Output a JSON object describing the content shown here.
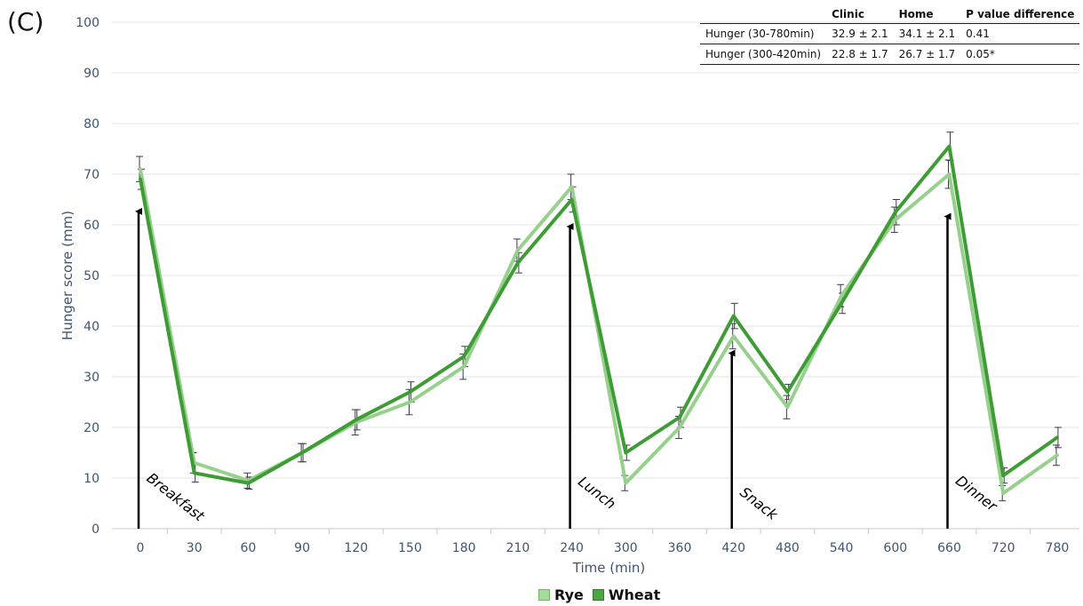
{
  "panel_label": "(C)",
  "table": {
    "headers": [
      "",
      "Clinic",
      "Home",
      "P value difference"
    ],
    "rows": [
      [
        "Hunger (30-780min)",
        "32.9 ± 2.1",
        "34.1 ± 2.1",
        "0.41"
      ],
      [
        "Hunger (300-420min)",
        "22.8 ± 1.7",
        "26.7 ± 1.7",
        "0.05*"
      ]
    ]
  },
  "chart_data": {
    "type": "line",
    "xlabel": "Time (min)",
    "ylabel": "Hunger score (mm)",
    "ylim": [
      0,
      100
    ],
    "yticks": [
      0,
      10,
      20,
      30,
      40,
      50,
      60,
      70,
      80,
      90,
      100
    ],
    "categories": [
      "0",
      "30",
      "60",
      "90",
      "120",
      "150",
      "180",
      "210",
      "240",
      "300",
      "360",
      "420",
      "480",
      "540",
      "600",
      "660",
      "720",
      "780"
    ],
    "grid": "horizontal",
    "legend_position": "bottom",
    "series": [
      {
        "name": "Rye",
        "color": "#96d08c",
        "values": [
          71,
          13,
          9.5,
          15,
          21,
          25,
          32,
          55,
          67.5,
          9,
          20,
          38,
          24,
          46,
          61,
          70,
          7,
          14.5
        ],
        "errors": [
          2.5,
          2,
          1.5,
          1.8,
          2.5,
          2.5,
          2.5,
          2.2,
          2.5,
          1.5,
          2.2,
          2.5,
          2.3,
          2.2,
          2.5,
          2.8,
          1.5,
          2
        ]
      },
      {
        "name": "Wheat",
        "color": "#3e9c35",
        "values": [
          69,
          11,
          9,
          15,
          21.5,
          27,
          34,
          52.5,
          65,
          15,
          22,
          42,
          27,
          44.5,
          62.5,
          75.5,
          10.5,
          18
        ],
        "errors": [
          2,
          1.8,
          1.2,
          1.8,
          2,
          2,
          2,
          2,
          2.5,
          1.5,
          2,
          2.5,
          1.5,
          2,
          2.5,
          2.8,
          1.5,
          2
        ]
      }
    ],
    "annotations": [
      {
        "text": "Breakfast",
        "category": "0",
        "value": 63
      },
      {
        "text": "Lunch",
        "category": "240",
        "value": 60
      },
      {
        "text": "Snack",
        "category": "420",
        "value": 35
      },
      {
        "text": "Dinner",
        "category": "660",
        "value": 62
      }
    ]
  }
}
